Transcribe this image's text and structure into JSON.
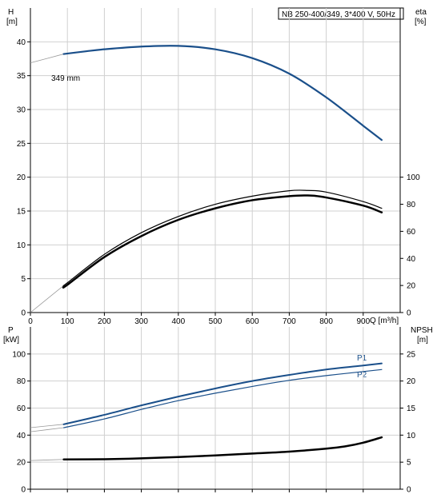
{
  "chart_data": [
    {
      "type": "line",
      "title": "NB 250-400/349, 3*400 V, 50Hz",
      "ylabel": "H",
      "ylabel_unit": "[m]",
      "y2label": "eta",
      "y2label_unit": "[%]",
      "xlabel": "Q [m³/h]",
      "xlim": [
        0,
        1000
      ],
      "ylim": [
        0,
        45
      ],
      "y2lim": [
        0,
        225
      ],
      "x_ticks": [
        "0",
        "100",
        "200",
        "300",
        "400",
        "500",
        "600",
        "700",
        "800",
        "900"
      ],
      "y_ticks": [
        "0",
        "5",
        "10",
        "15",
        "20",
        "25",
        "30",
        "35",
        "40"
      ],
      "y2_ticks": [
        "0",
        "20",
        "40",
        "60",
        "80",
        "100"
      ],
      "grid": true,
      "annotations": [
        {
          "text": "349 mm",
          "x": 60,
          "y": 38.5
        }
      ],
      "series": [
        {
          "axis": "y",
          "color": "#1a4f8a",
          "x": [
            90,
            150,
            200,
            300,
            400,
            500,
            600,
            700,
            800,
            900,
            950
          ],
          "y": [
            38.2,
            38.6,
            38.9,
            39.3,
            39.4,
            38.9,
            37.6,
            35.3,
            31.8,
            27.6,
            25.5
          ]
        },
        {
          "axis": "y2",
          "color": "#000000",
          "width": 1.2,
          "x": [
            90,
            100,
            200,
            300,
            400,
            500,
            600,
            700,
            750,
            800,
            900,
            950
          ],
          "y": [
            20,
            22,
            43,
            59,
            71,
            80,
            86,
            90,
            90.2,
            89,
            82,
            77
          ]
        },
        {
          "axis": "y2",
          "color": "#000000",
          "width": 2.5,
          "x": [
            90,
            100,
            200,
            300,
            400,
            500,
            600,
            700,
            750,
            800,
            900,
            950
          ],
          "y": [
            19,
            20.5,
            41,
            56.5,
            68.5,
            77,
            83,
            86,
            86.5,
            85,
            79,
            74
          ]
        }
      ],
      "dashed_extension": [
        {
          "axis": "y",
          "x": [
            0,
            90
          ],
          "y": [
            36.9,
            38.2
          ]
        },
        {
          "axis": "y2",
          "x": [
            0,
            90
          ],
          "y": [
            0,
            20
          ]
        }
      ]
    },
    {
      "type": "line",
      "ylabel": "P",
      "ylabel_unit": "[kW]",
      "y2label": "NPSH",
      "y2label_unit": "[m]",
      "xlim": [
        0,
        1000
      ],
      "ylim": [
        0,
        120
      ],
      "y2lim": [
        0,
        30
      ],
      "y_ticks": [
        "0",
        "20",
        "40",
        "60",
        "80",
        "100"
      ],
      "y2_ticks": [
        "0",
        "5",
        "10",
        "15",
        "20",
        "25"
      ],
      "grid": true,
      "series": [
        {
          "name": "P1",
          "axis": "y",
          "color": "#1a4f8a",
          "width": 2,
          "x": [
            90,
            200,
            300,
            400,
            500,
            600,
            700,
            800,
            900,
            950
          ],
          "y": [
            48,
            55,
            62,
            68.5,
            74.5,
            80,
            84.5,
            88.5,
            91.5,
            93
          ]
        },
        {
          "name": "P2",
          "axis": "y",
          "color": "#1a4f8a",
          "width": 1.2,
          "x": [
            90,
            200,
            300,
            400,
            500,
            600,
            700,
            800,
            900,
            950
          ],
          "y": [
            45.5,
            52,
            59,
            65.5,
            71,
            76,
            80.5,
            84,
            87,
            88.5
          ]
        },
        {
          "axis": "y2",
          "color": "#000000",
          "width": 2.5,
          "x": [
            90,
            200,
            300,
            400,
            500,
            600,
            700,
            800,
            850,
            900,
            950
          ],
          "y": [
            5.5,
            5.55,
            5.7,
            5.95,
            6.25,
            6.6,
            6.95,
            7.5,
            7.9,
            8.6,
            9.6
          ]
        }
      ],
      "dashed_extension": [
        {
          "axis": "y",
          "x": [
            0,
            90
          ],
          "y": [
            45.5,
            48
          ]
        },
        {
          "axis": "y",
          "x": [
            0,
            90
          ],
          "y": [
            42.5,
            45.5
          ]
        },
        {
          "axis": "y2",
          "x": [
            0,
            90
          ],
          "y": [
            5.3,
            5.5
          ]
        }
      ]
    }
  ]
}
